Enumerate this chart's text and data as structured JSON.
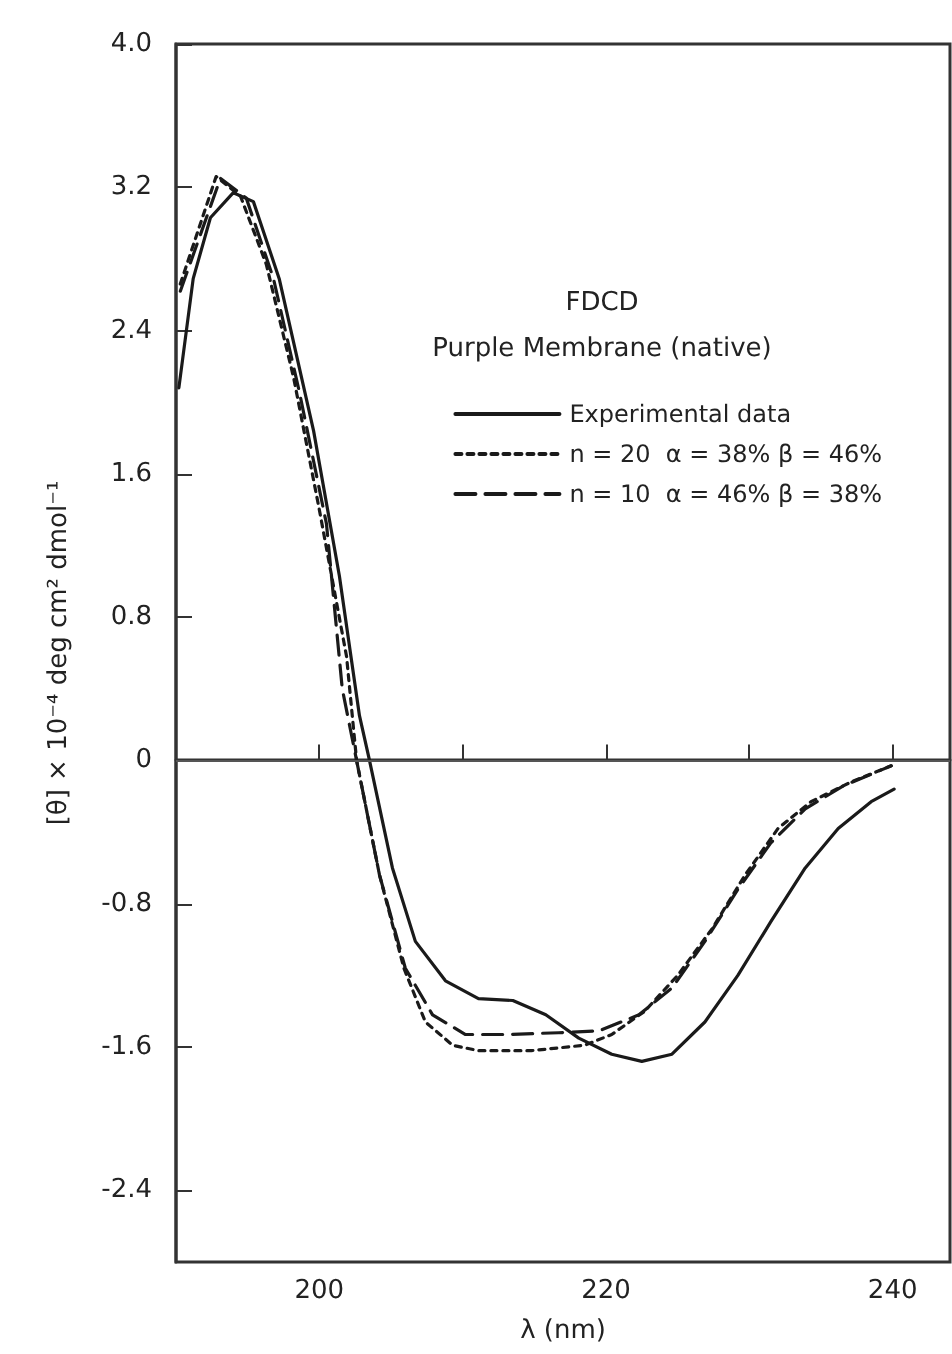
{
  "chart_data": {
    "type": "line",
    "title": "FDCD",
    "subtitle": "Purple Membrane (native)",
    "xlabel": "λ (nm)",
    "ylabel": "[θ] × 10⁻⁴ deg cm² dmol⁻¹",
    "xlim": [
      190,
      244
    ],
    "xticks": [
      200,
      {
        "value": 210,
        "label": null
      },
      220,
      {
        "value": 230,
        "label": null
      },
      240
    ],
    "ylim": [
      -2.8,
      4.0
    ],
    "yticks": [
      -2.4,
      -1.6,
      -0.8,
      0,
      0.8,
      1.6,
      2.4,
      3.2,
      {
        "value": 4,
        "label": "4.0"
      }
    ],
    "grid": false,
    "legend": "top right",
    "marker": "none",
    "ref_lines": [
      {
        "axis": "y",
        "value": 0
      }
    ],
    "series": [
      {
        "name": "Experimental data",
        "color": "#1a1a1a",
        "line_style": "solid",
        "x": [
          190.2,
          191.2,
          192.4,
          194.0,
          195.4,
          197.2,
          199.6,
          201.4,
          202.8,
          203.5,
          205.1,
          206.7,
          208.8,
          211.1,
          213.5,
          215.8,
          218.1,
          220.4,
          222.5,
          224.6,
          226.9,
          229.2,
          231.5,
          233.9,
          236.2,
          238.5,
          240.1
        ],
        "values": [
          2.08,
          2.69,
          3.03,
          3.17,
          3.12,
          2.69,
          1.84,
          1.03,
          0.25,
          0.0,
          -0.6,
          -1.01,
          -1.23,
          -1.33,
          -1.34,
          -1.42,
          -1.55,
          -1.64,
          -1.68,
          -1.64,
          -1.46,
          -1.2,
          -0.9,
          -0.6,
          -0.38,
          -0.23,
          -0.16
        ]
      },
      {
        "name": "n = 20  α = 38% β = 46%",
        "color": "#1a1a1a",
        "line_style": "dotted",
        "x": [
          190.3,
          192.8,
          194.5,
          196.3,
          198.2,
          200.0,
          201.9,
          202.6,
          204.2,
          205.9,
          207.4,
          209.3,
          211.1,
          214.8,
          218.5,
          220.4,
          222.7,
          225.0,
          227.4,
          229.7,
          232.0,
          234.3,
          237.1,
          239.9
        ],
        "values": [
          2.66,
          3.26,
          3.15,
          2.77,
          2.14,
          1.4,
          0.58,
          0.0,
          -0.64,
          -1.16,
          -1.46,
          -1.59,
          -1.62,
          -1.62,
          -1.59,
          -1.53,
          -1.4,
          -1.2,
          -0.94,
          -0.64,
          -0.38,
          -0.23,
          -0.12,
          -0.03
        ]
      },
      {
        "name": "n = 10  α = 46% β = 38%",
        "color": "#1a1a1a",
        "line_style": "dashed",
        "x": [
          190.3,
          193.1,
          194.9,
          196.8,
          198.6,
          200.5,
          201.6,
          202.6,
          204.2,
          206.0,
          207.9,
          210.2,
          213.0,
          216.7,
          219.5,
          222.3,
          224.6,
          226.9,
          229.2,
          231.5,
          233.9,
          236.6,
          239.9
        ],
        "values": [
          2.62,
          3.25,
          3.14,
          2.69,
          2.06,
          1.32,
          0.4,
          0.0,
          -0.64,
          -1.16,
          -1.42,
          -1.53,
          -1.53,
          -1.52,
          -1.51,
          -1.42,
          -1.27,
          -1.01,
          -0.72,
          -0.46,
          -0.27,
          -0.14,
          -0.03
        ]
      }
    ]
  }
}
